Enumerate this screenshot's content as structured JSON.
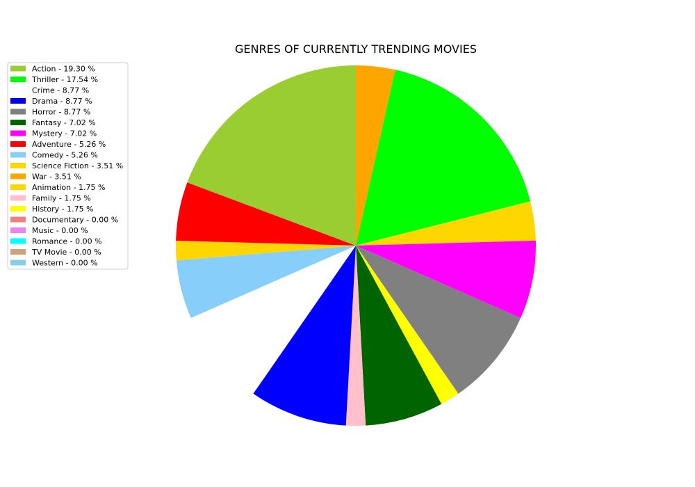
{
  "chart_data": {
    "type": "pie",
    "title": "GENRES OF CURRENTLY TRENDING MOVIES",
    "legend_position": "upper-left",
    "start_angle_deg": 90,
    "direction": "clockwise",
    "slices": [
      {
        "label": "Action - 19.30 %",
        "name": "Action",
        "value": 19.3,
        "color": "#9ACD32"
      },
      {
        "label": "Thriller - 17.54 %",
        "name": "Thriller",
        "value": 17.54,
        "color": "#00FF00"
      },
      {
        "label": "Crime - 8.77 %",
        "name": "Crime",
        "value": 8.77,
        "color": "#FFFFFF"
      },
      {
        "label": "Drama - 8.77 %",
        "name": "Drama",
        "value": 8.77,
        "color": "#0000FF"
      },
      {
        "label": "Horror - 8.77 %",
        "name": "Horror",
        "value": 8.77,
        "color": "#808080"
      },
      {
        "label": "Fantasy - 7.02 %",
        "name": "Fantasy",
        "value": 7.02,
        "color": "#006400"
      },
      {
        "label": "Mystery - 7.02 %",
        "name": "Mystery",
        "value": 7.02,
        "color": "#FF00FF"
      },
      {
        "label": "Adventure - 5.26 %",
        "name": "Adventure",
        "value": 5.26,
        "color": "#FF0000"
      },
      {
        "label": "Comedy - 5.26 %",
        "name": "Comedy",
        "value": 5.26,
        "color": "#87CEFA"
      },
      {
        "label": "Science Fiction - 3.51 %",
        "name": "Science Fiction",
        "value": 3.51,
        "color": "#FFD700"
      },
      {
        "label": "War - 3.51 %",
        "name": "War",
        "value": 3.51,
        "color": "#FFA500"
      },
      {
        "label": "Animation - 1.75 %",
        "name": "Animation",
        "value": 1.75,
        "color": "#FFD700"
      },
      {
        "label": "Family - 1.75 %",
        "name": "Family",
        "value": 1.75,
        "color": "#FFC0CB"
      },
      {
        "label": "History - 1.75 %",
        "name": "History",
        "value": 1.75,
        "color": "#FFFF00"
      },
      {
        "label": "Documentary - 0.00 %",
        "name": "Documentary",
        "value": 0.0,
        "color": "#F08080"
      },
      {
        "label": "Music - 0.00 %",
        "name": "Music",
        "value": 0.0,
        "color": "#EE82EE"
      },
      {
        "label": "Romance - 0.00 %",
        "name": "Romance",
        "value": 0.0,
        "color": "#00FFFF"
      },
      {
        "label": "TV Movie - 0.00 %",
        "name": "TV Movie",
        "value": 0.0,
        "color": "#D2A07A"
      },
      {
        "label": "Western - 0.00 %",
        "name": "Western",
        "value": 0.0,
        "color": "#87CEEB"
      }
    ],
    "pie_order": [
      "War",
      "Thriller",
      "Science Fiction",
      "Mystery",
      "Horror",
      "History",
      "Fantasy",
      "Family",
      "Drama",
      "Crime",
      "Comedy",
      "Animation",
      "Adventure",
      "Action"
    ]
  }
}
